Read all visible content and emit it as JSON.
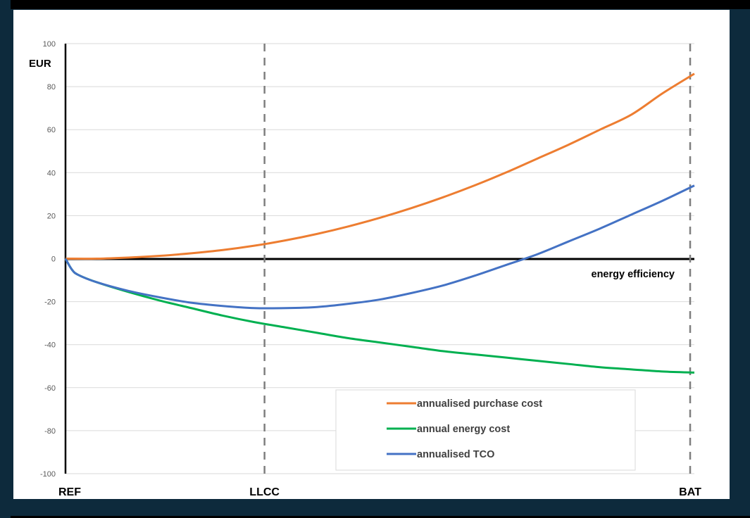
{
  "chart_data": {
    "type": "line",
    "ylabel": "EUR",
    "xlabel": "energy efficiency",
    "ylim": [
      -100,
      100
    ],
    "yticks": [
      100,
      80,
      60,
      40,
      20,
      0,
      -20,
      -40,
      -60,
      -80,
      -100
    ],
    "x_markers": [
      {
        "label": "REF",
        "x": 0,
        "dashed": false
      },
      {
        "label": "LLCC",
        "x": 0.3165,
        "dashed": true
      },
      {
        "label": "BAT",
        "x": 0.9933,
        "dashed": true
      }
    ],
    "xlim": [
      0,
      1
    ],
    "grid": true,
    "legend_position": "bottom-right",
    "series": [
      {
        "name": "annualised purchase cost",
        "color": "#ed7d31",
        "x": [
          0,
          0.05,
          0.1,
          0.15,
          0.2,
          0.25,
          0.3,
          0.35,
          0.4,
          0.45,
          0.5,
          0.55,
          0.6,
          0.65,
          0.7,
          0.75,
          0.8,
          0.85,
          0.9,
          0.95,
          1.0
        ],
        "y": [
          0,
          0,
          0.5,
          1.3,
          2.5,
          4,
          6,
          8.5,
          11.5,
          15,
          19,
          23.5,
          28.5,
          34,
          40,
          46.5,
          53,
          60,
          67,
          77,
          86
        ]
      },
      {
        "name": "annual energy cost",
        "color": "#00b050",
        "x": [
          0,
          0.01,
          0.02,
          0.05,
          0.1,
          0.15,
          0.2,
          0.25,
          0.3,
          0.35,
          0.4,
          0.45,
          0.5,
          0.55,
          0.6,
          0.65,
          0.7,
          0.75,
          0.8,
          0.85,
          0.9,
          0.95,
          1.0
        ],
        "y": [
          0,
          -5,
          -7.5,
          -11,
          -15.5,
          -19.5,
          -23,
          -26.5,
          -29.5,
          -32,
          -34.5,
          -37,
          -39,
          -41,
          -43,
          -44.5,
          -46,
          -47.5,
          -49,
          -50.5,
          -51.5,
          -52.5,
          -53
        ]
      },
      {
        "name": "annualised TCO",
        "color": "#4472c4",
        "x": [
          0,
          0.01,
          0.02,
          0.05,
          0.1,
          0.15,
          0.2,
          0.25,
          0.3,
          0.35,
          0.4,
          0.45,
          0.5,
          0.55,
          0.6,
          0.65,
          0.7,
          0.75,
          0.8,
          0.85,
          0.9,
          0.95,
          1.0
        ],
        "y": [
          0,
          -5,
          -7.5,
          -11,
          -15,
          -18,
          -20.5,
          -22,
          -23,
          -23,
          -22.5,
          -21,
          -19,
          -16,
          -12.5,
          -8,
          -3,
          2,
          8,
          14,
          20.5,
          27,
          34
        ]
      }
    ]
  }
}
